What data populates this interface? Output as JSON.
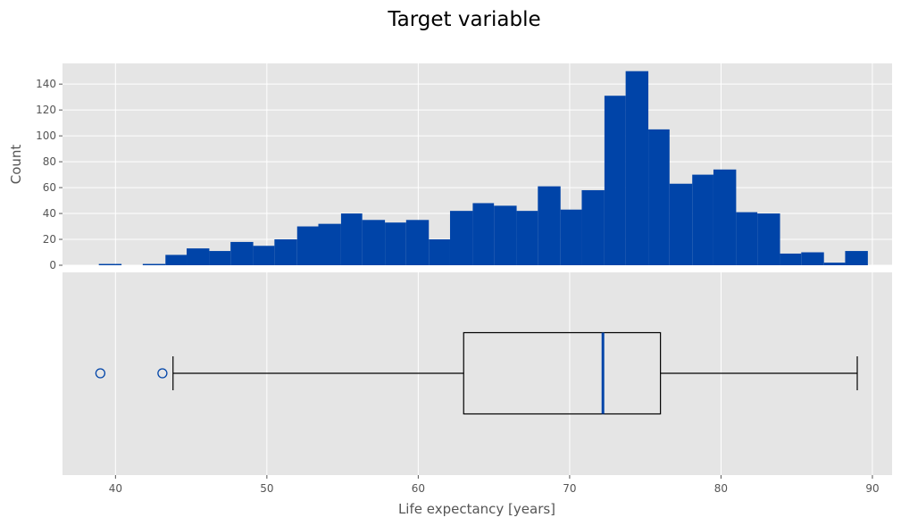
{
  "figure": {
    "title": "Target variable"
  },
  "chart_data": [
    {
      "type": "histogram",
      "ylabel": "Count",
      "xlabel": "",
      "xlim": [
        36.5,
        91.3
      ],
      "ylim": [
        0,
        156
      ],
      "yticks": [
        0,
        20,
        40,
        60,
        80,
        100,
        120,
        140
      ],
      "grid": true,
      "color": "#0044A8",
      "bins": [
        {
          "x0": 38.9,
          "x1": 40.4,
          "count": 1
        },
        {
          "x0": 40.4,
          "x1": 41.8,
          "count": 0
        },
        {
          "x0": 41.8,
          "x1": 43.3,
          "count": 1
        },
        {
          "x0": 43.3,
          "x1": 44.7,
          "count": 8
        },
        {
          "x0": 44.7,
          "x1": 46.2,
          "count": 13
        },
        {
          "x0": 46.2,
          "x1": 47.6,
          "count": 11
        },
        {
          "x0": 47.6,
          "x1": 49.1,
          "count": 18
        },
        {
          "x0": 49.1,
          "x1": 50.5,
          "count": 15
        },
        {
          "x0": 50.5,
          "x1": 52.0,
          "count": 20
        },
        {
          "x0": 52.0,
          "x1": 53.4,
          "count": 30
        },
        {
          "x0": 53.4,
          "x1": 54.9,
          "count": 32
        },
        {
          "x0": 54.9,
          "x1": 56.3,
          "count": 40
        },
        {
          "x0": 56.3,
          "x1": 57.8,
          "count": 35
        },
        {
          "x0": 57.8,
          "x1": 59.2,
          "count": 33
        },
        {
          "x0": 59.2,
          "x1": 60.7,
          "count": 35
        },
        {
          "x0": 60.7,
          "x1": 62.1,
          "count": 20
        },
        {
          "x0": 62.1,
          "x1": 63.6,
          "count": 42
        },
        {
          "x0": 63.6,
          "x1": 65.0,
          "count": 48
        },
        {
          "x0": 65.0,
          "x1": 66.5,
          "count": 46
        },
        {
          "x0": 66.5,
          "x1": 67.9,
          "count": 42
        },
        {
          "x0": 67.9,
          "x1": 69.4,
          "count": 61
        },
        {
          "x0": 69.4,
          "x1": 70.8,
          "count": 43
        },
        {
          "x0": 70.8,
          "x1": 72.3,
          "count": 58
        },
        {
          "x0": 72.3,
          "x1": 73.7,
          "count": 131
        },
        {
          "x0": 73.7,
          "x1": 75.2,
          "count": 150
        },
        {
          "x0": 75.2,
          "x1": 76.6,
          "count": 105
        },
        {
          "x0": 76.6,
          "x1": 78.1,
          "count": 63
        },
        {
          "x0": 78.1,
          "x1": 79.5,
          "count": 70
        },
        {
          "x0": 79.5,
          "x1": 81.0,
          "count": 74
        },
        {
          "x0": 81.0,
          "x1": 82.4,
          "count": 41
        },
        {
          "x0": 82.4,
          "x1": 83.9,
          "count": 40
        },
        {
          "x0": 83.9,
          "x1": 85.3,
          "count": 9
        },
        {
          "x0": 85.3,
          "x1": 86.8,
          "count": 10
        },
        {
          "x0": 86.8,
          "x1": 88.2,
          "count": 2
        },
        {
          "x0": 88.2,
          "x1": 89.7,
          "count": 11
        }
      ]
    },
    {
      "type": "boxplot",
      "xlabel": "Life expectancy [years]",
      "xlim": [
        36.5,
        91.3
      ],
      "xticks": [
        40,
        50,
        60,
        70,
        80,
        90
      ],
      "grid": true,
      "orientation": "horizontal",
      "whisker_low": 43.8,
      "q1": 63.0,
      "median": 72.2,
      "q3": 76.0,
      "whisker_high": 89.0,
      "outliers": [
        39.0,
        43.1
      ],
      "median_color": "#0044A8",
      "outlier_color": "#0044A8",
      "box_color": "#000000"
    }
  ]
}
